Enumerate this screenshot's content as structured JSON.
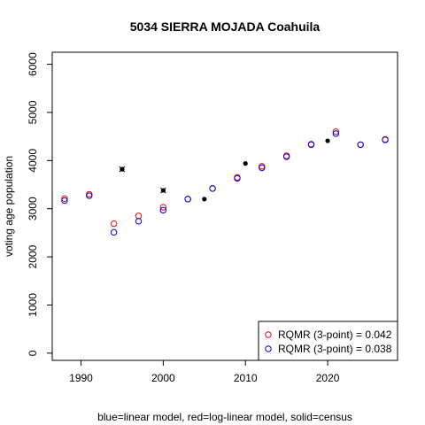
{
  "chart_data": {
    "type": "scatter",
    "title": "5034 SIERRA MOJADA Coahuila",
    "xlabel": "blue=linear model, red=log-linear model, solid=census",
    "ylabel": "voting age population",
    "xlim": [
      1986.5,
      2028.5
    ],
    "ylim": [
      -150,
      6250
    ],
    "x_ticks": [
      1990,
      2000,
      2010,
      2020
    ],
    "y_ticks": [
      0,
      1000,
      2000,
      3000,
      4000,
      5000,
      6000
    ],
    "grid": false,
    "legend_position": "bottom-right",
    "colors": {
      "linear": "#0000ff",
      "loglinear": "#ff0000",
      "census": "#000000"
    },
    "legend": [
      {
        "label": "RQMR (3-point) = 0.042",
        "color": "#ff0000"
      },
      {
        "label": "RQMR (3-point) = 0.038",
        "color": "#0000ff"
      }
    ],
    "series": [
      {
        "model": "log-linear",
        "x": [
          1988,
          1991,
          1994,
          1997,
          2000,
          2003,
          2006,
          2009,
          2012,
          2015,
          2018,
          2021,
          2024,
          2027
        ],
        "values": [
          3210,
          3300,
          2690,
          2850,
          3030,
          3200,
          3420,
          3650,
          3880,
          4100,
          4340,
          4600,
          4330,
          4440
        ]
      },
      {
        "model": "linear",
        "x": [
          1988,
          1991,
          1994,
          1997,
          2000,
          2003,
          2006,
          2009,
          2012,
          2015,
          2018,
          2021,
          2024,
          2027
        ],
        "values": [
          3170,
          3270,
          2510,
          2740,
          2970,
          3200,
          3420,
          3630,
          3850,
          4080,
          4330,
          4560,
          4330,
          4430
        ]
      },
      {
        "model": "census",
        "x": [
          1995,
          2000,
          2005,
          2010,
          2020
        ],
        "values": [
          3820,
          3380,
          3200,
          3940,
          4410
        ]
      }
    ],
    "census_cross_x": [
      1995,
      2000
    ]
  }
}
